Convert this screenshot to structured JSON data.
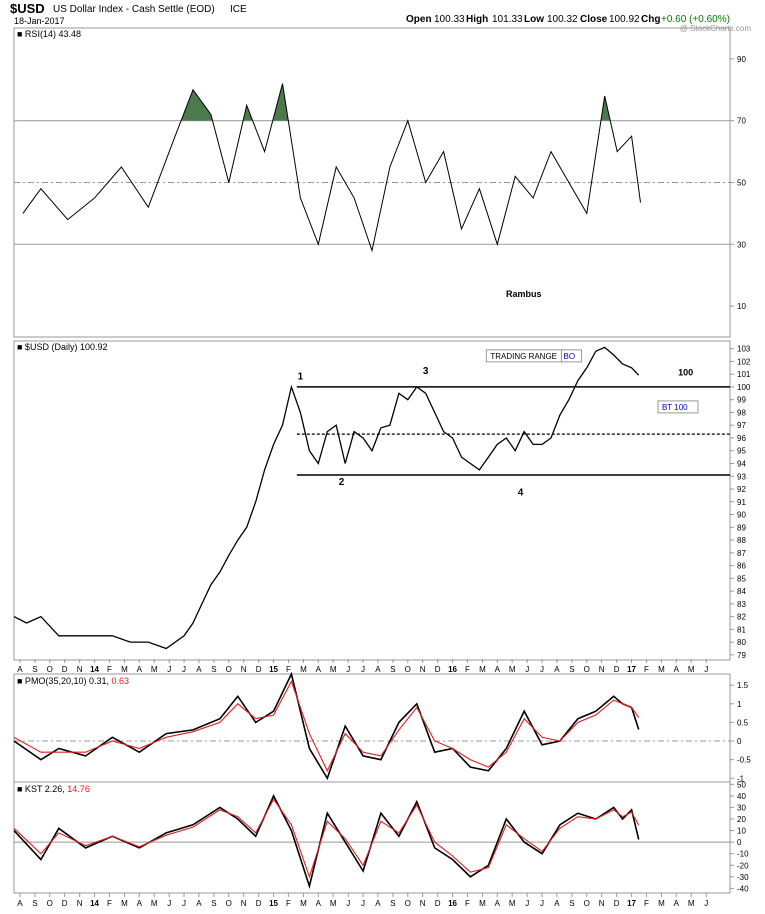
{
  "header": {
    "symbol": "$USD",
    "name": "US Dollar Index - Cash Settle (EOD)",
    "exchange": "ICE",
    "date": "18-Jan-2017",
    "open_label": "Open",
    "open": "100.33",
    "high_label": "High",
    "high": "101.33",
    "low_label": "Low",
    "low": "100.32",
    "close_label": "Close",
    "close": "100.92",
    "chg_label": "Chg",
    "chg": "+0.60 (+0.60%)",
    "watermark": "@ StockCharts.com"
  },
  "colors": {
    "line": "#000000",
    "signal": "#e02020",
    "positive": "#008000",
    "annotation_blue": "#0000cc",
    "overbought_fill": "#4d7a4d",
    "grid": "#999999"
  },
  "chart_data": [
    {
      "panel": "rsi",
      "type": "line",
      "label": "RSI(14)",
      "last_value": "43.48",
      "ylim": [
        0,
        100
      ],
      "yticks": [
        10,
        30,
        50,
        70,
        90
      ],
      "reference_lines": [
        30,
        50,
        70
      ],
      "annotation": "Rambus",
      "x": [
        2013.6,
        2013.7,
        2013.85,
        2014.0,
        2014.15,
        2014.3,
        2014.45,
        2014.55,
        2014.65,
        2014.75,
        2014.85,
        2014.95,
        2015.05,
        2015.15,
        2015.25,
        2015.35,
        2015.45,
        2015.55,
        2015.65,
        2015.75,
        2015.85,
        2015.95,
        2016.05,
        2016.15,
        2016.25,
        2016.35,
        2016.45,
        2016.55,
        2016.65,
        2016.75,
        2016.85,
        2016.92,
        2017.0,
        2017.05
      ],
      "y": [
        40,
        48,
        38,
        45,
        55,
        42,
        65,
        80,
        72,
        50,
        75,
        60,
        82,
        45,
        30,
        55,
        45,
        28,
        55,
        70,
        50,
        60,
        35,
        48,
        30,
        52,
        45,
        60,
        50,
        40,
        78,
        60,
        65,
        43.48
      ]
    },
    {
      "panel": "price",
      "type": "line",
      "label": "$USD (Daily)",
      "last_value": "100.92",
      "ylim": [
        78.6,
        103.6
      ],
      "yticks": [
        79,
        80,
        81,
        82,
        83,
        84,
        85,
        86,
        87,
        88,
        89,
        90,
        91,
        92,
        93,
        94,
        95,
        96,
        97,
        98,
        99,
        100,
        101,
        102,
        103
      ],
      "x": [
        2013.55,
        2013.62,
        2013.7,
        2013.8,
        2013.9,
        2014.0,
        2014.1,
        2014.2,
        2014.3,
        2014.4,
        2014.5,
        2014.55,
        2014.6,
        2014.65,
        2014.7,
        2014.75,
        2014.8,
        2014.85,
        2014.9,
        2014.95,
        2015.0,
        2015.05,
        2015.1,
        2015.15,
        2015.2,
        2015.25,
        2015.3,
        2015.35,
        2015.4,
        2015.45,
        2015.5,
        2015.55,
        2015.6,
        2015.65,
        2015.7,
        2015.75,
        2015.8,
        2015.85,
        2015.9,
        2015.95,
        2016.0,
        2016.05,
        2016.1,
        2016.15,
        2016.2,
        2016.25,
        2016.3,
        2016.35,
        2016.4,
        2016.45,
        2016.5,
        2016.55,
        2016.6,
        2016.65,
        2016.7,
        2016.75,
        2016.8,
        2016.85,
        2016.9,
        2016.95,
        2017.0,
        2017.04
      ],
      "y": [
        82,
        81.5,
        82,
        80.5,
        80.5,
        80.5,
        80.5,
        80,
        80,
        79.5,
        80.5,
        81.5,
        83,
        84.5,
        85.5,
        86.8,
        88,
        89,
        91,
        93.5,
        95.5,
        97,
        100,
        98,
        95,
        94,
        96.5,
        97,
        94,
        96.5,
        96,
        95,
        96.8,
        97,
        99.5,
        99,
        100,
        99.5,
        98,
        96.5,
        96,
        94.5,
        94,
        93.5,
        94.5,
        95.5,
        96,
        95,
        96.5,
        95.5,
        95.5,
        96,
        97.8,
        99,
        100.5,
        101.5,
        102.8,
        103.1,
        102.5,
        101.8,
        101.5,
        100.92
      ]
    },
    {
      "panel": "pmo",
      "type": "line",
      "label": "PMO(35,20,10)",
      "last_value": "0.31",
      "signal_value": "0.63",
      "ylim": [
        -1.1,
        1.8
      ],
      "yticks": [
        -1.0,
        -0.5,
        0.0,
        0.5,
        1.0,
        1.5
      ],
      "reference_lines": [
        0
      ],
      "series": [
        {
          "name": "PMO",
          "x": [
            2013.55,
            2013.7,
            2013.8,
            2013.95,
            2014.1,
            2014.25,
            2014.4,
            2014.55,
            2014.7,
            2014.8,
            2014.9,
            2015.0,
            2015.1,
            2015.2,
            2015.3,
            2015.4,
            2015.5,
            2015.6,
            2015.7,
            2015.8,
            2015.9,
            2016.0,
            2016.1,
            2016.2,
            2016.3,
            2016.4,
            2016.5,
            2016.6,
            2016.7,
            2016.8,
            2016.9,
            2016.95,
            2017.0,
            2017.04
          ],
          "y": [
            0,
            -0.5,
            -0.2,
            -0.4,
            0.1,
            -0.3,
            0.2,
            0.3,
            0.6,
            1.2,
            0.5,
            0.8,
            1.8,
            -0.2,
            -1.0,
            0.4,
            -0.4,
            -0.5,
            0.5,
            1.0,
            -0.3,
            -0.2,
            -0.7,
            -0.8,
            -0.2,
            0.8,
            -0.1,
            0.0,
            0.6,
            0.8,
            1.2,
            1.0,
            0.9,
            0.31
          ]
        },
        {
          "name": "Signal",
          "x": [
            2013.55,
            2013.7,
            2013.8,
            2013.95,
            2014.1,
            2014.25,
            2014.4,
            2014.55,
            2014.7,
            2014.8,
            2014.9,
            2015.0,
            2015.1,
            2015.2,
            2015.3,
            2015.4,
            2015.5,
            2015.6,
            2015.7,
            2015.8,
            2015.9,
            2016.0,
            2016.1,
            2016.2,
            2016.3,
            2016.4,
            2016.5,
            2016.6,
            2016.7,
            2016.8,
            2016.9,
            2016.95,
            2017.0,
            2017.04
          ],
          "y": [
            0.1,
            -0.3,
            -0.3,
            -0.3,
            0.0,
            -0.2,
            0.1,
            0.25,
            0.5,
            1.0,
            0.6,
            0.7,
            1.6,
            0.2,
            -0.8,
            0.2,
            -0.3,
            -0.4,
            0.3,
            0.9,
            0.0,
            -0.2,
            -0.5,
            -0.7,
            -0.3,
            0.6,
            0.1,
            0.0,
            0.5,
            0.7,
            1.1,
            1.0,
            0.9,
            0.63
          ]
        }
      ]
    },
    {
      "panel": "kst",
      "type": "line",
      "label": "KST",
      "last_value": "2.26",
      "signal_value": "14.76",
      "ylim": [
        -44,
        52
      ],
      "yticks": [
        -40,
        -30,
        -20,
        -10,
        0,
        10,
        20,
        30,
        40,
        50
      ],
      "reference_lines": [
        0
      ],
      "series": [
        {
          "name": "KST",
          "x": [
            2013.55,
            2013.7,
            2013.8,
            2013.95,
            2014.1,
            2014.25,
            2014.4,
            2014.55,
            2014.7,
            2014.8,
            2014.9,
            2015.0,
            2015.1,
            2015.2,
            2015.3,
            2015.4,
            2015.5,
            2015.6,
            2015.7,
            2015.8,
            2015.9,
            2016.0,
            2016.1,
            2016.2,
            2016.3,
            2016.4,
            2016.5,
            2016.6,
            2016.7,
            2016.8,
            2016.9,
            2016.95,
            2017.0,
            2017.04
          ],
          "y": [
            10,
            -15,
            12,
            -5,
            5,
            -5,
            8,
            15,
            30,
            20,
            5,
            40,
            10,
            -38,
            25,
            0,
            -25,
            25,
            5,
            35,
            -5,
            -15,
            -30,
            -20,
            20,
            0,
            -10,
            15,
            25,
            20,
            30,
            20,
            28,
            2.26
          ]
        },
        {
          "name": "Signal",
          "x": [
            2013.55,
            2013.7,
            2013.8,
            2013.95,
            2014.1,
            2014.25,
            2014.4,
            2014.55,
            2014.7,
            2014.8,
            2014.9,
            2015.0,
            2015.1,
            2015.2,
            2015.3,
            2015.4,
            2015.5,
            2015.6,
            2015.7,
            2015.8,
            2015.9,
            2016.0,
            2016.1,
            2016.2,
            2016.3,
            2016.4,
            2016.5,
            2016.6,
            2016.7,
            2016.8,
            2016.9,
            2016.95,
            2017.0,
            2017.04
          ],
          "y": [
            12,
            -10,
            8,
            -3,
            5,
            -4,
            6,
            13,
            28,
            22,
            8,
            37,
            15,
            -30,
            18,
            3,
            -20,
            18,
            8,
            32,
            0,
            -12,
            -26,
            -22,
            15,
            3,
            -8,
            12,
            22,
            20,
            28,
            22,
            26,
            14.76
          ]
        }
      ]
    }
  ],
  "x_axis": {
    "ticks": [
      {
        "label": "A",
        "x": 2013.583,
        "bold": false
      },
      {
        "label": "S",
        "x": 2013.667,
        "bold": false
      },
      {
        "label": "O",
        "x": 2013.75,
        "bold": false
      },
      {
        "label": "D",
        "x": 2013.833,
        "bold": false
      },
      {
        "label": "N",
        "x": 2013.917,
        "bold": false
      },
      {
        "label": "14",
        "x": 2014.0,
        "bold": true
      },
      {
        "label": "F",
        "x": 2014.083,
        "bold": false
      },
      {
        "label": "M",
        "x": 2014.167,
        "bold": false
      },
      {
        "label": "A",
        "x": 2014.25,
        "bold": false
      },
      {
        "label": "M",
        "x": 2014.333,
        "bold": false
      },
      {
        "label": "J",
        "x": 2014.417,
        "bold": false
      },
      {
        "label": "J",
        "x": 2014.5,
        "bold": false
      },
      {
        "label": "A",
        "x": 2014.583,
        "bold": false
      },
      {
        "label": "S",
        "x": 2014.667,
        "bold": false
      },
      {
        "label": "O",
        "x": 2014.75,
        "bold": false
      },
      {
        "label": "N",
        "x": 2014.833,
        "bold": false
      },
      {
        "label": "D",
        "x": 2014.917,
        "bold": false
      },
      {
        "label": "15",
        "x": 2015.0,
        "bold": true
      },
      {
        "label": "F",
        "x": 2015.083,
        "bold": false
      },
      {
        "label": "M",
        "x": 2015.167,
        "bold": false
      },
      {
        "label": "A",
        "x": 2015.25,
        "bold": false
      },
      {
        "label": "M",
        "x": 2015.333,
        "bold": false
      },
      {
        "label": "J",
        "x": 2015.417,
        "bold": false
      },
      {
        "label": "J",
        "x": 2015.5,
        "bold": false
      },
      {
        "label": "A",
        "x": 2015.583,
        "bold": false
      },
      {
        "label": "S",
        "x": 2015.667,
        "bold": false
      },
      {
        "label": "O",
        "x": 2015.75,
        "bold": false
      },
      {
        "label": "N",
        "x": 2015.833,
        "bold": false
      },
      {
        "label": "D",
        "x": 2015.917,
        "bold": false
      },
      {
        "label": "16",
        "x": 2016.0,
        "bold": true
      },
      {
        "label": "F",
        "x": 2016.083,
        "bold": false
      },
      {
        "label": "M",
        "x": 2016.167,
        "bold": false
      },
      {
        "label": "A",
        "x": 2016.25,
        "bold": false
      },
      {
        "label": "M",
        "x": 2016.333,
        "bold": false
      },
      {
        "label": "J",
        "x": 2016.417,
        "bold": false
      },
      {
        "label": "J",
        "x": 2016.5,
        "bold": false
      },
      {
        "label": "A",
        "x": 2016.583,
        "bold": false
      },
      {
        "label": "S",
        "x": 2016.667,
        "bold": false
      },
      {
        "label": "O",
        "x": 2016.75,
        "bold": false
      },
      {
        "label": "N",
        "x": 2016.833,
        "bold": false
      },
      {
        "label": "D",
        "x": 2016.917,
        "bold": false
      },
      {
        "label": "17",
        "x": 2017.0,
        "bold": true
      },
      {
        "label": "F",
        "x": 2017.083,
        "bold": false
      },
      {
        "label": "M",
        "x": 2017.167,
        "bold": false
      },
      {
        "label": "A",
        "x": 2017.25,
        "bold": false
      },
      {
        "label": "M",
        "x": 2017.333,
        "bold": false
      },
      {
        "label": "J",
        "x": 2017.417,
        "bold": false
      }
    ]
  },
  "price_annotations": {
    "range_top": 100,
    "range_mid": 96.3,
    "range_bottom": 93.1,
    "range_start": 2015.13,
    "points": [
      {
        "label": "1",
        "x": 2015.15,
        "y": 100.6
      },
      {
        "label": "2",
        "x": 2015.38,
        "y": 92.3
      },
      {
        "label": "3",
        "x": 2015.85,
        "y": 101.0
      },
      {
        "label": "4",
        "x": 2016.38,
        "y": 91.5
      }
    ],
    "trading_range_label": "TRADING RANGE",
    "trading_range_at": {
      "x": 2016.2,
      "y": 102.2
    },
    "bo_label": "BO",
    "bo_at": {
      "x": 2016.62,
      "y": 102.2
    },
    "bt_label": "BT 100",
    "bt_at": {
      "x": 2017.17,
      "y": 98.2
    },
    "level_label": "100",
    "level_at": {
      "x": 2017.26,
      "y": 100.9
    }
  }
}
